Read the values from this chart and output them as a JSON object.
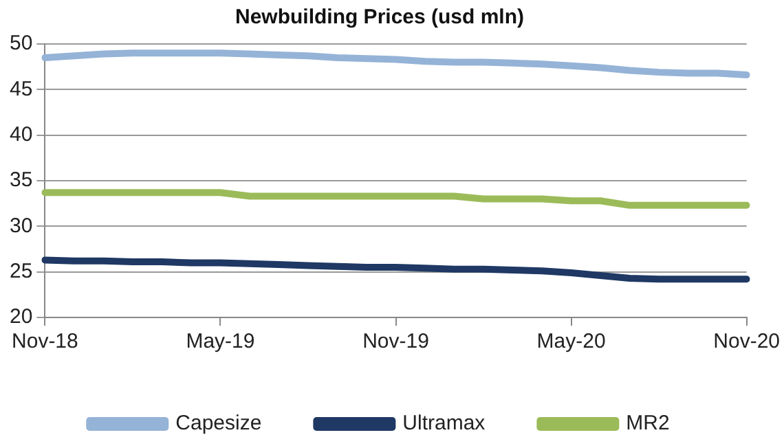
{
  "chart_data": {
    "type": "line",
    "title": "Newbuilding Prices (usd mln)",
    "categories": [
      "Nov-18",
      null,
      null,
      null,
      null,
      null,
      "May-19",
      null,
      null,
      null,
      null,
      null,
      "Nov-19",
      null,
      null,
      null,
      null,
      null,
      "May-20",
      null,
      null,
      null,
      null,
      null,
      "Nov-20"
    ],
    "series": [
      {
        "name": "Capesize",
        "color": "#95b3d7",
        "values": [
          48.5,
          48.7,
          48.9,
          49,
          49,
          49,
          49,
          48.9,
          48.8,
          48.7,
          48.5,
          48.4,
          48.3,
          48.1,
          48,
          48,
          47.9,
          47.8,
          47.6,
          47.4,
          47.1,
          46.9,
          46.8,
          46.8,
          46.6
        ]
      },
      {
        "name": "Ultramax",
        "color": "#1f3864",
        "values": [
          26.3,
          26.2,
          26.2,
          26.1,
          26.1,
          26,
          26,
          25.9,
          25.8,
          25.7,
          25.6,
          25.5,
          25.5,
          25.4,
          25.3,
          25.3,
          25.2,
          25.1,
          24.9,
          24.6,
          24.3,
          24.2,
          24.2,
          24.2,
          24.2
        ]
      },
      {
        "name": "MR2",
        "color": "#9bbb59",
        "values": [
          33.7,
          33.7,
          33.7,
          33.7,
          33.7,
          33.7,
          33.7,
          33.3,
          33.3,
          33.3,
          33.3,
          33.3,
          33.3,
          33.3,
          33.3,
          33,
          33,
          33,
          32.8,
          32.8,
          32.3,
          32.3,
          32.3,
          32.3,
          32.3
        ]
      }
    ],
    "ylim": [
      20,
      50
    ],
    "yticks": [
      20,
      25,
      30,
      35,
      40,
      45,
      50
    ],
    "grid": "y",
    "legend": "bottom",
    "marker": "none",
    "line_style": "solid"
  }
}
